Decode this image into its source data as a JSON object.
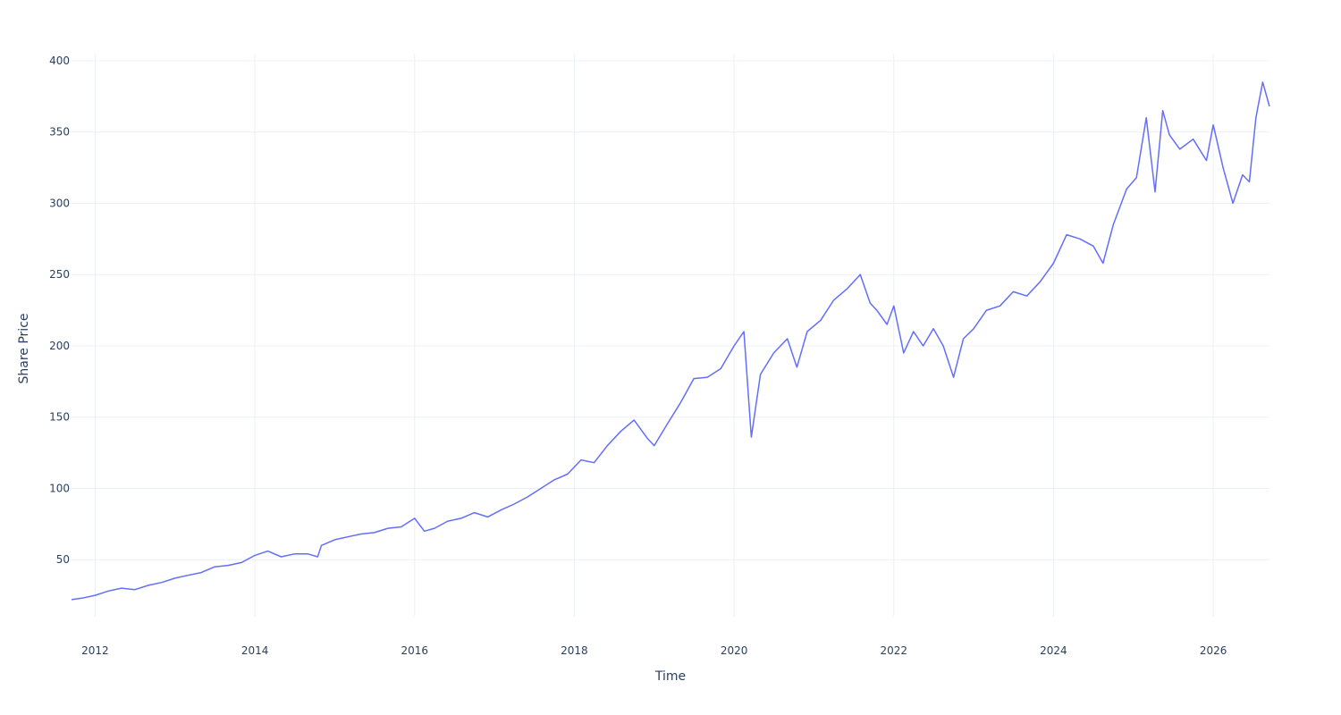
{
  "chart_data": {
    "type": "line",
    "title": "",
    "xlabel": "Time",
    "ylabel": "Share Price",
    "x_ticks": [
      "2012",
      "2014",
      "2016",
      "2018",
      "2020",
      "2022",
      "2024",
      "2026"
    ],
    "x_tick_values": [
      2012,
      2014,
      2016,
      2018,
      2020,
      2022,
      2024,
      2026
    ],
    "y_ticks": [
      "50",
      "100",
      "150",
      "200",
      "250",
      "300",
      "350",
      "400"
    ],
    "y_tick_values": [
      50,
      100,
      150,
      200,
      250,
      300,
      350,
      400
    ],
    "xlim": [
      "2011-09-15",
      "2026-09-15"
    ],
    "ylim": [
      10,
      405
    ],
    "grid": true,
    "legend": "none",
    "series": [
      {
        "color": "#636efa",
        "x": [
          "2011-09-15",
          "2011-11-01",
          "2012-01-01",
          "2012-03-01",
          "2012-05-01",
          "2012-07-01",
          "2012-09-01",
          "2012-11-01",
          "2013-01-01",
          "2013-03-01",
          "2013-05-01",
          "2013-07-01",
          "2013-09-01",
          "2013-11-01",
          "2014-01-01",
          "2014-03-01",
          "2014-05-01",
          "2014-07-01",
          "2014-09-01",
          "2014-10-15",
          "2014-11-01",
          "2015-01-01",
          "2015-03-01",
          "2015-05-01",
          "2015-07-01",
          "2015-09-01",
          "2015-11-01",
          "2016-01-01",
          "2016-02-15",
          "2016-04-01",
          "2016-06-01",
          "2016-08-01",
          "2016-10-01",
          "2016-12-01",
          "2017-02-01",
          "2017-04-01",
          "2017-06-01",
          "2017-08-01",
          "2017-10-01",
          "2017-12-01",
          "2018-02-01",
          "2018-04-01",
          "2018-06-01",
          "2018-08-01",
          "2018-10-01",
          "2018-12-01",
          "2019-01-01",
          "2019-03-01",
          "2019-05-01",
          "2019-07-01",
          "2019-09-01",
          "2019-11-01",
          "2020-01-01",
          "2020-02-15",
          "2020-03-20",
          "2020-05-01",
          "2020-07-01",
          "2020-09-01",
          "2020-10-15",
          "2020-12-01",
          "2021-02-01",
          "2021-04-01",
          "2021-06-01",
          "2021-08-01",
          "2021-09-15",
          "2021-10-15",
          "2021-12-01",
          "2022-01-01",
          "2022-02-15",
          "2022-04-01",
          "2022-05-15",
          "2022-07-01",
          "2022-08-15",
          "2022-10-01",
          "2022-11-15",
          "2023-01-01",
          "2023-03-01",
          "2023-05-01",
          "2023-07-01",
          "2023-09-01",
          "2023-11-01",
          "2024-01-01",
          "2024-03-01",
          "2024-05-01",
          "2024-07-01",
          "2024-08-15",
          "2024-10-01",
          "2024-12-01",
          "2025-01-15",
          "2025-03-01",
          "2025-04-10",
          "2025-05-15",
          "2025-06-15",
          "2025-08-01",
          "2025-10-01",
          "2025-12-01",
          "2026-01-01",
          "2026-02-15",
          "2026-04-01",
          "2026-05-15",
          "2026-06-15",
          "2026-07-15",
          "2026-08-15",
          "2026-09-15"
        ],
        "y": [
          22,
          23,
          25,
          28,
          30,
          29,
          32,
          34,
          37,
          39,
          41,
          45,
          46,
          48,
          53,
          56,
          52,
          54,
          54,
          52,
          60,
          64,
          66,
          68,
          69,
          72,
          73,
          79,
          70,
          72,
          77,
          79,
          83,
          80,
          85,
          89,
          94,
          100,
          106,
          110,
          120,
          118,
          130,
          140,
          148,
          135,
          130,
          145,
          160,
          177,
          178,
          184,
          200,
          210,
          136,
          180,
          195,
          205,
          185,
          210,
          218,
          232,
          240,
          250,
          230,
          225,
          215,
          228,
          195,
          210,
          200,
          212,
          200,
          178,
          205,
          212,
          225,
          228,
          238,
          235,
          245,
          258,
          278,
          275,
          270,
          258,
          285,
          310,
          318,
          360,
          308,
          365,
          348,
          338,
          345,
          330,
          355,
          325,
          300,
          320,
          315,
          360,
          385,
          368
        ]
      }
    ]
  }
}
